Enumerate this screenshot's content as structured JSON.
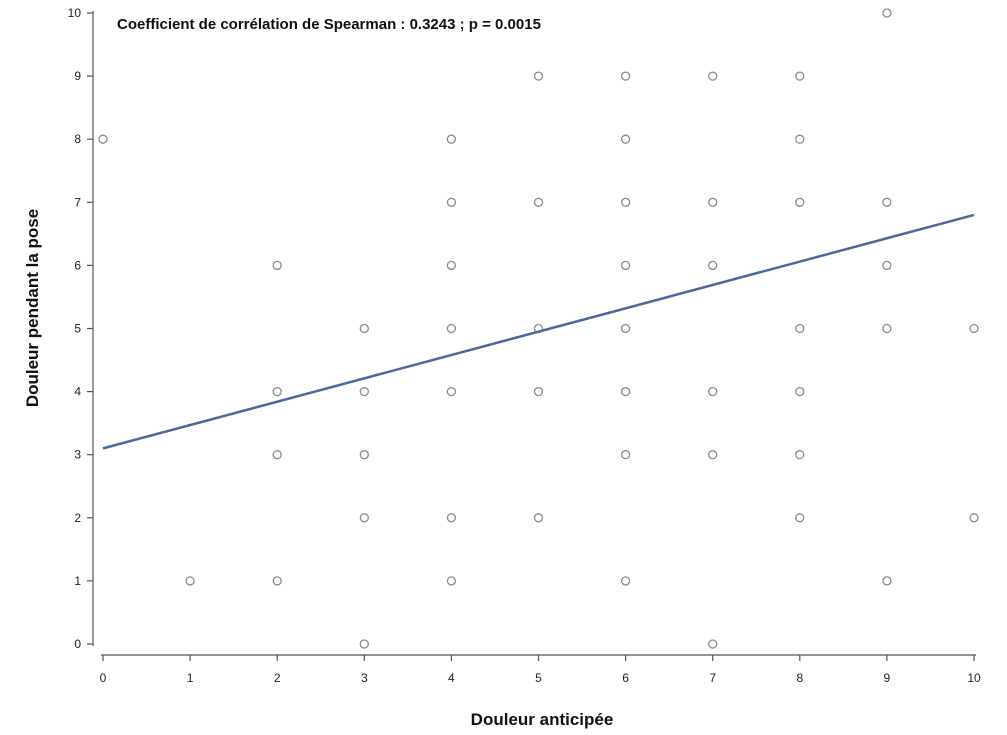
{
  "chart_data": {
    "type": "scatter",
    "title": "Coefficient de corrélation de Spearman : 0.3243 ; p = 0.0015",
    "xlabel": "Douleur anticipée",
    "ylabel": "Douleur pendant la pose",
    "xlim": [
      0,
      10
    ],
    "ylim": [
      0,
      10
    ],
    "xticks": [
      "0",
      "1",
      "2",
      "3",
      "4",
      "5",
      "6",
      "7",
      "8",
      "9",
      "10"
    ],
    "yticks": [
      "0",
      "1",
      "2",
      "3",
      "4",
      "5",
      "6",
      "7",
      "8",
      "9",
      "10"
    ],
    "grid": false,
    "colors": {
      "points": "#8a8a8a",
      "fit_line": "#4a6a9c",
      "axis": "#555555"
    },
    "points": [
      {
        "x": 0,
        "y": 8
      },
      {
        "x": 1,
        "y": 1
      },
      {
        "x": 2,
        "y": 1
      },
      {
        "x": 2,
        "y": 3
      },
      {
        "x": 2,
        "y": 4
      },
      {
        "x": 2,
        "y": 6
      },
      {
        "x": 3,
        "y": 0
      },
      {
        "x": 3,
        "y": 2
      },
      {
        "x": 3,
        "y": 3
      },
      {
        "x": 3,
        "y": 4
      },
      {
        "x": 3,
        "y": 5
      },
      {
        "x": 4,
        "y": 1
      },
      {
        "x": 4,
        "y": 2
      },
      {
        "x": 4,
        "y": 4
      },
      {
        "x": 4,
        "y": 5
      },
      {
        "x": 4,
        "y": 6
      },
      {
        "x": 4,
        "y": 7
      },
      {
        "x": 4,
        "y": 8
      },
      {
        "x": 5,
        "y": 2
      },
      {
        "x": 5,
        "y": 4
      },
      {
        "x": 5,
        "y": 5
      },
      {
        "x": 5,
        "y": 7
      },
      {
        "x": 5,
        "y": 9
      },
      {
        "x": 6,
        "y": 1
      },
      {
        "x": 6,
        "y": 3
      },
      {
        "x": 6,
        "y": 4
      },
      {
        "x": 6,
        "y": 5
      },
      {
        "x": 6,
        "y": 6
      },
      {
        "x": 6,
        "y": 7
      },
      {
        "x": 6,
        "y": 8
      },
      {
        "x": 6,
        "y": 9
      },
      {
        "x": 7,
        "y": 0
      },
      {
        "x": 7,
        "y": 3
      },
      {
        "x": 7,
        "y": 4
      },
      {
        "x": 7,
        "y": 6
      },
      {
        "x": 7,
        "y": 7
      },
      {
        "x": 7,
        "y": 9
      },
      {
        "x": 8,
        "y": 2
      },
      {
        "x": 8,
        "y": 3
      },
      {
        "x": 8,
        "y": 4
      },
      {
        "x": 8,
        "y": 5
      },
      {
        "x": 8,
        "y": 7
      },
      {
        "x": 8,
        "y": 8
      },
      {
        "x": 8,
        "y": 9
      },
      {
        "x": 9,
        "y": 1
      },
      {
        "x": 9,
        "y": 5
      },
      {
        "x": 9,
        "y": 6
      },
      {
        "x": 9,
        "y": 7
      },
      {
        "x": 9,
        "y": 10
      },
      {
        "x": 10,
        "y": 2
      },
      {
        "x": 10,
        "y": 5
      }
    ],
    "fit_line": {
      "x": [
        0,
        10
      ],
      "y": [
        3.1,
        6.8
      ]
    }
  }
}
